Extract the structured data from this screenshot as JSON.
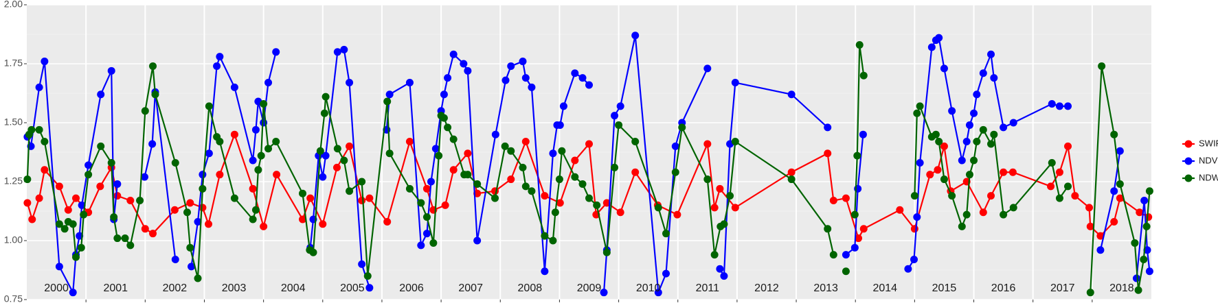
{
  "chart_data": {
    "type": "line",
    "xlim": [
      2000,
      2019
    ],
    "ylim": [
      0.75,
      2.0
    ],
    "yticks": [
      0.75,
      {
        "value": 1,
        "label": "1.00"
      },
      1.25,
      {
        "value": 1.5,
        "label": "1.50"
      },
      1.75,
      {
        "value": 2,
        "label": "2.00"
      }
    ],
    "xgrid": [
      2001,
      2002,
      2003,
      2004,
      2005,
      2006,
      2007,
      2008,
      2009,
      2010,
      2011,
      2012,
      2013,
      2014,
      2015,
      2016,
      2017,
      2018
    ],
    "year_labels": [
      {
        "x": 2000.5,
        "label": "2000"
      },
      {
        "x": 2001.5,
        "label": "2001"
      },
      {
        "x": 2002.5,
        "label": "2002"
      },
      {
        "x": 2003.5,
        "label": "2003"
      },
      {
        "x": 2004.5,
        "label": "2004"
      },
      {
        "x": 2005.5,
        "label": "2005"
      },
      {
        "x": 2006.5,
        "label": "2006"
      },
      {
        "x": 2007.5,
        "label": "2007"
      },
      {
        "x": 2008.5,
        "label": "2008"
      },
      {
        "x": 2009.5,
        "label": "2009"
      },
      {
        "x": 2010.5,
        "label": "2010"
      },
      {
        "x": 2011.5,
        "label": "2011"
      },
      {
        "x": 2012.5,
        "label": "2012"
      },
      {
        "x": 2013.5,
        "label": "2013"
      },
      {
        "x": 2014.5,
        "label": "2014"
      },
      {
        "x": 2015.5,
        "label": "2015"
      },
      {
        "x": 2016.5,
        "label": "2016"
      },
      {
        "x": 2017.5,
        "label": "2017"
      },
      {
        "x": 2018.5,
        "label": "2018"
      }
    ],
    "grid": true,
    "legend": "right",
    "series": [
      {
        "name": "SWIR",
        "color": "#ff0000",
        "x": [
          2000.01,
          2000.09,
          2000.21,
          2000.3,
          2000.55,
          2000.7,
          2000.83,
          2001.04,
          2001.24,
          2001.43,
          2001.53,
          2001.75,
          2002.0,
          2002.13,
          2002.5,
          2002.76,
          2002.97,
          2003.07,
          2003.26,
          2003.51,
          2003.82,
          2004.0,
          2004.22,
          2004.66,
          2004.79,
          2005.0,
          2005.24,
          2005.45,
          2005.66,
          2005.79,
          2006.09,
          2006.47,
          2006.76,
          2006.87,
          2007.07,
          2007.21,
          2007.45,
          2007.61,
          2007.91,
          2008.18,
          2008.43,
          2008.75,
          2009.01,
          2009.26,
          2009.5,
          2009.62,
          2009.8,
          2010.03,
          2010.28,
          2010.66,
          2010.99,
          2011.5,
          2011.62,
          2011.71,
          2011.97,
          2012.92,
          2013.53,
          2013.63,
          2013.84,
          2014.05,
          2014.14,
          2014.75,
          2015.0,
          2015.26,
          2015.39,
          2015.5,
          2015.61,
          2015.88,
          2016.16,
          2016.29,
          2016.5,
          2016.66,
          2017.3,
          2017.45,
          2017.59,
          2017.71,
          2017.95,
          2017.97,
          2018.14,
          2018.37,
          2018.47,
          2018.8,
          2018.95
        ],
        "values": [
          1.16,
          1.09,
          1.18,
          1.3,
          1.23,
          1.13,
          1.18,
          1.12,
          1.23,
          1.31,
          1.19,
          1.17,
          1.05,
          1.03,
          1.13,
          1.16,
          1.14,
          1.07,
          1.28,
          1.45,
          1.22,
          1.06,
          1.28,
          1.09,
          1.18,
          1.07,
          1.31,
          1.4,
          1.17,
          1.18,
          1.08,
          1.42,
          1.22,
          1.13,
          1.15,
          1.3,
          1.37,
          1.2,
          1.21,
          1.26,
          1.42,
          1.19,
          1.16,
          1.34,
          1.41,
          1.11,
          1.16,
          1.12,
          1.29,
          1.15,
          1.11,
          1.41,
          1.14,
          1.22,
          1.14,
          1.29,
          1.37,
          1.17,
          1.18,
          1.01,
          1.05,
          1.13,
          1.05,
          1.28,
          1.3,
          1.4,
          1.21,
          1.25,
          1.12,
          1.19,
          1.29,
          1.29,
          1.23,
          1.29,
          1.4,
          1.19,
          1.14,
          1.06,
          1.02,
          1.08,
          1.18,
          1.12,
          1.1
        ]
      },
      {
        "name": "NDVI",
        "color": "#0000ff",
        "x": [
          2000.01,
          2000.07,
          2000.21,
          2000.3,
          2000.55,
          2000.78,
          2000.83,
          2000.89,
          2000.93,
          2001.04,
          2001.25,
          2001.43,
          2001.47,
          2001.53,
          null,
          2001.99,
          2002.12,
          2002.17,
          2002.51,
          null,
          2002.78,
          2002.89,
          2002.97,
          2003.08,
          2003.21,
          2003.26,
          2003.51,
          2003.82,
          2003.87,
          2003.91,
          2004.0,
          2004.08,
          2004.21,
          null,
          2004.79,
          2004.84,
          2004.93,
          2005.0,
          2005.05,
          2005.25,
          2005.36,
          2005.45,
          2005.66,
          2005.79,
          null,
          2006.08,
          2006.13,
          2006.47,
          2006.66,
          2006.76,
          2006.83,
          2006.91,
          2007.0,
          2007.05,
          2007.11,
          2007.21,
          2007.38,
          2007.45,
          2007.61,
          2007.92,
          2008.09,
          2008.18,
          2008.38,
          2008.43,
          2008.53,
          2008.75,
          2008.89,
          2008.96,
          2009.01,
          2009.07,
          2009.26,
          2009.39,
          2009.5,
          null,
          2009.75,
          2009.8,
          2009.93,
          2010.03,
          2010.28,
          2010.67,
          2010.8,
          2010.96,
          2011.07,
          2011.5,
          null,
          2011.71,
          2011.78,
          2011.88,
          2011.97,
          2012.92,
          2013.53,
          null,
          2013.84,
          2013.99,
          2014.04,
          2014.13,
          null,
          2014.89,
          2014.99,
          2015.04,
          2015.09,
          2015.29,
          2015.36,
          2015.41,
          2015.5,
          2015.63,
          2015.8,
          2015.88,
          2015.93,
          2016.0,
          2016.05,
          2016.16,
          2016.29,
          2016.34,
          2016.5,
          2016.67,
          2017.32,
          2017.45,
          2017.59,
          null,
          2018.14,
          2018.37,
          2018.47,
          null,
          2018.75,
          2018.88,
          2018.93,
          2018.97
        ],
        "values": [
          1.44,
          1.4,
          1.65,
          1.76,
          0.89,
          0.78,
          0.94,
          1.02,
          1.15,
          1.32,
          1.62,
          1.72,
          1.09,
          1.24,
          null,
          1.27,
          1.41,
          1.63,
          0.92,
          null,
          0.89,
          1.08,
          1.28,
          1.37,
          1.74,
          1.78,
          1.65,
          1.34,
          1.47,
          1.59,
          1.5,
          1.67,
          1.8,
          null,
          0.97,
          1.09,
          1.36,
          1.27,
          1.36,
          1.8,
          1.81,
          1.67,
          0.9,
          0.8,
          null,
          1.47,
          1.62,
          1.67,
          0.98,
          1.03,
          1.25,
          1.39,
          1.55,
          1.62,
          1.69,
          1.79,
          1.75,
          1.72,
          1.0,
          1.45,
          1.68,
          1.74,
          1.76,
          1.69,
          1.65,
          0.87,
          1.37,
          1.49,
          1.49,
          1.57,
          1.71,
          1.69,
          1.66,
          null,
          0.78,
          0.96,
          1.53,
          1.57,
          1.87,
          0.78,
          0.86,
          1.4,
          1.5,
          1.73,
          null,
          0.88,
          0.85,
          1.41,
          1.67,
          1.62,
          1.48,
          null,
          0.94,
          0.97,
          1.22,
          1.45,
          null,
          0.88,
          0.92,
          1.1,
          1.33,
          1.82,
          1.85,
          1.86,
          1.73,
          1.55,
          1.34,
          1.42,
          1.49,
          1.54,
          1.62,
          1.71,
          1.79,
          1.69,
          1.48,
          1.5,
          1.58,
          1.57,
          1.57,
          null,
          0.96,
          1.21,
          1.38,
          null,
          0.84,
          1.17,
          0.96,
          0.87
        ]
      },
      {
        "name": "NDWI",
        "color": "#006400",
        "x": [
          2000.01,
          2000.04,
          2000.08,
          2000.21,
          2000.3,
          2000.55,
          2000.64,
          2000.7,
          2000.78,
          2000.83,
          2000.92,
          2000.96,
          2001.04,
          2001.25,
          2001.43,
          2001.47,
          2001.53,
          2001.66,
          2001.75,
          2001.91,
          2002.0,
          2002.13,
          2002.17,
          2002.51,
          2002.71,
          2002.76,
          2002.89,
          2002.97,
          2003.08,
          2003.21,
          2003.26,
          2003.51,
          2003.82,
          2003.87,
          2003.91,
          2003.96,
          2004.0,
          2004.08,
          2004.21,
          2004.66,
          2004.78,
          2004.84,
          2004.96,
          2005.03,
          2005.05,
          2005.25,
          2005.36,
          2005.45,
          2005.66,
          2005.76,
          2006.09,
          2006.13,
          2006.47,
          2006.66,
          2006.76,
          2006.87,
          2006.96,
          2007.0,
          2007.05,
          2007.11,
          2007.21,
          2007.39,
          2007.45,
          2007.61,
          2007.91,
          2008.08,
          2008.18,
          2008.38,
          2008.43,
          2008.53,
          2008.75,
          2008.89,
          2008.93,
          2009.0,
          2009.04,
          2009.26,
          2009.39,
          2009.5,
          2009.63,
          2009.8,
          2009.93,
          2010.0,
          2010.28,
          2010.67,
          2010.8,
          2010.96,
          2011.07,
          2011.5,
          2011.62,
          2011.72,
          2011.78,
          2011.88,
          2011.97,
          2012.92,
          2013.53,
          2013.63,
          null,
          2013.84,
          null,
          2013.99,
          2014.03,
          2014.07,
          2014.14,
          null,
          2015.0,
          2015.04,
          2015.09,
          2015.29,
          2015.36,
          2015.41,
          2015.5,
          2015.63,
          2015.8,
          2015.88,
          2015.93,
          2016.0,
          2016.05,
          2016.16,
          2016.29,
          2016.34,
          2016.5,
          2016.67,
          2017.32,
          2017.45,
          2017.59,
          null,
          2017.97,
          2018.16,
          2018.37,
          2018.47,
          2018.72,
          2018.78,
          2018.87,
          2018.92,
          2018.97
        ],
        "values": [
          1.26,
          1.45,
          1.47,
          1.47,
          1.42,
          1.07,
          1.05,
          1.08,
          1.07,
          0.93,
          0.97,
          1.11,
          1.28,
          1.4,
          1.33,
          1.1,
          1.01,
          1.01,
          0.98,
          1.17,
          1.55,
          1.74,
          1.62,
          1.33,
          1.12,
          0.97,
          0.84,
          1.22,
          1.57,
          1.44,
          1.42,
          1.18,
          1.09,
          1.13,
          1.3,
          1.36,
          1.58,
          1.39,
          1.42,
          1.2,
          0.96,
          0.95,
          1.38,
          1.54,
          1.61,
          1.39,
          1.34,
          1.21,
          1.25,
          0.85,
          1.59,
          1.37,
          1.22,
          1.16,
          1.1,
          0.99,
          1.36,
          1.53,
          1.52,
          1.48,
          1.43,
          1.28,
          1.28,
          1.24,
          1.18,
          1.4,
          1.38,
          1.31,
          1.23,
          1.21,
          1.02,
          1.0,
          1.12,
          1.26,
          1.38,
          1.27,
          1.24,
          1.18,
          1.15,
          0.95,
          1.31,
          1.49,
          1.42,
          1.14,
          1.03,
          1.29,
          1.48,
          1.26,
          0.94,
          1.06,
          1.07,
          1.19,
          1.42,
          1.26,
          1.05,
          0.94,
          null,
          0.87,
          null,
          1.11,
          1.36,
          1.83,
          1.7,
          null,
          1.19,
          1.54,
          1.57,
          1.44,
          1.45,
          1.42,
          1.26,
          1.19,
          1.06,
          1.11,
          1.28,
          1.34,
          1.42,
          1.47,
          1.41,
          1.45,
          1.11,
          1.14,
          1.33,
          1.18,
          1.23,
          null,
          0.78,
          1.74,
          1.45,
          1.24,
          0.99,
          0.79,
          0.92,
          1.06,
          1.21
        ]
      }
    ]
  }
}
